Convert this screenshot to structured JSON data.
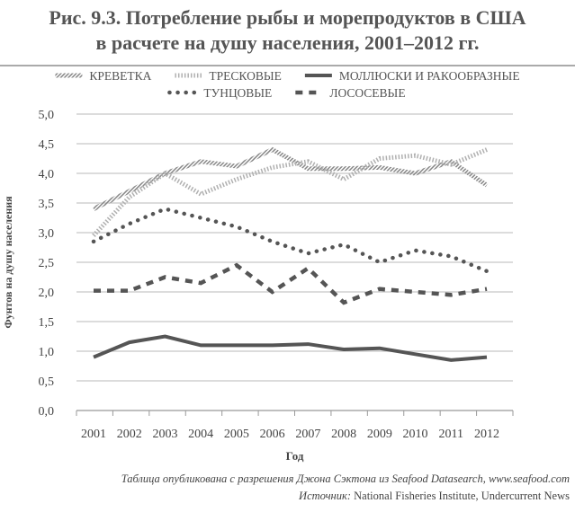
{
  "chart_data": {
    "type": "line",
    "title": "Рис. 9.3. Потребление рыбы и морепродуктов в США в расчете на душу населения, 2001–2012 гг.",
    "title_lines": [
      "Рис. 9.3. Потребление рыбы и морепродуктов в США",
      "в расчете на душу населения, 2001–2012 гг."
    ],
    "xlabel": "Год",
    "ylabel": "Фунтов на душу населения",
    "x": [
      "2001",
      "2002",
      "2003",
      "2004",
      "2005",
      "2006",
      "2007",
      "2008",
      "2009",
      "2010",
      "2011",
      "2012"
    ],
    "ylim": [
      0,
      5
    ],
    "yticks": [
      "0,0",
      "0,5",
      "1,0",
      "1,5",
      "2,0",
      "2,5",
      "3,0",
      "3,5",
      "4,0",
      "4,5",
      "5,0"
    ],
    "grid": true,
    "legend": "top",
    "series": [
      {
        "name": "КРЕВЕТКА",
        "style": "hatched",
        "color": "#999999",
        "values": [
          3.4,
          3.7,
          4.0,
          4.2,
          4.12,
          4.4,
          4.08,
          4.08,
          4.1,
          4.0,
          4.2,
          3.8
        ]
      },
      {
        "name": "ТРЕСКОВЫЕ",
        "style": "diamonds",
        "color": "#aaaaaa",
        "values": [
          2.95,
          3.6,
          4.0,
          3.65,
          3.9,
          4.1,
          4.2,
          3.9,
          4.25,
          4.3,
          4.15,
          4.4
        ]
      },
      {
        "name": "МОЛЛЮСКИ И РАКООБРАЗНЫЕ",
        "style": "solid",
        "color": "#555555",
        "values": [
          0.9,
          1.15,
          1.25,
          1.1,
          1.1,
          1.1,
          1.12,
          1.03,
          1.05,
          0.95,
          0.85,
          0.9
        ]
      },
      {
        "name": "ТУНЦОВЫЕ",
        "style": "dotted",
        "color": "#555555",
        "values": [
          2.85,
          3.15,
          3.4,
          3.25,
          3.1,
          2.85,
          2.65,
          2.8,
          2.5,
          2.7,
          2.6,
          2.35
        ]
      },
      {
        "name": "ЛОСОСЕВЫЕ",
        "style": "dashed",
        "color": "#555555",
        "values": [
          2.02,
          2.02,
          2.25,
          2.15,
          2.45,
          2.0,
          2.4,
          1.82,
          2.05,
          2.0,
          1.95,
          2.05
        ]
      }
    ]
  },
  "footer": {
    "line1": "Таблица опубликована с разрешения Джона Сэктона из Seafood Datasearch, www.seafood.com",
    "source_label": "Источник:",
    "source_text": " National Fisheries Institute, Undercurrent News"
  }
}
